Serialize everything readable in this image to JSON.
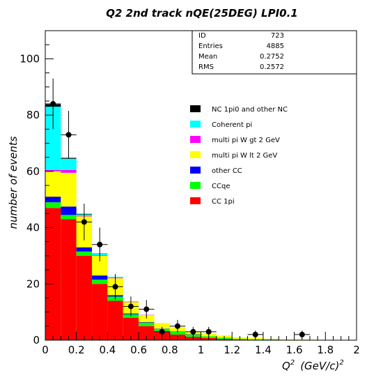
{
  "title": "Q2 2nd track nQE(25DEG) LPI0.1",
  "stats": [
    {
      "label": "ID",
      "value": "723"
    },
    {
      "label": "Entries",
      "value": "4885"
    },
    {
      "label": "Mean",
      "value": "0.2752"
    },
    {
      "label": "RMS",
      "value": "0.2572"
    }
  ],
  "chart_data": {
    "type": "bar",
    "stacked": true,
    "title": "Q2 2nd track nQE(25DEG) LPI0.1",
    "xlabel": "Q",
    "xlabel_sup": "2",
    "xlabel_unit": "(GeV/c)",
    "xlabel_unit_sup": "2",
    "ylabel": "number of events",
    "xlim": [
      0,
      2
    ],
    "ylim": [
      0,
      110
    ],
    "bin_width": 0.1,
    "bins": [
      0.0,
      0.1,
      0.2,
      0.3,
      0.4,
      0.5,
      0.6,
      0.7,
      0.8,
      0.9,
      1.0,
      1.1,
      1.2,
      1.3,
      1.4,
      1.5,
      1.6,
      1.7,
      1.8,
      1.9
    ],
    "x_ticks": [
      {
        "value": 0,
        "label": "0"
      },
      {
        "value": 0.2,
        "label": "0.2"
      },
      {
        "value": 0.4,
        "label": "0.4"
      },
      {
        "value": 0.6,
        "label": "0.6"
      },
      {
        "value": 0.8,
        "label": "0.8"
      },
      {
        "value": 1.0,
        "label": "1"
      },
      {
        "value": 1.2,
        "label": "1.2"
      },
      {
        "value": 1.4,
        "label": "1.4"
      },
      {
        "value": 1.6,
        "label": "1.6"
      },
      {
        "value": 1.8,
        "label": "1.8"
      },
      {
        "value": 2.0,
        "label": "2"
      }
    ],
    "y_ticks": [
      {
        "value": 0,
        "label": "0"
      },
      {
        "value": 20,
        "label": "20"
      },
      {
        "value": 40,
        "label": "40"
      },
      {
        "value": 60,
        "label": "60"
      },
      {
        "value": 80,
        "label": "80"
      },
      {
        "value": 100,
        "label": "100"
      }
    ],
    "series": [
      {
        "name": "CC 1pi",
        "color": "#ff0000",
        "values": [
          47,
          43,
          30,
          20,
          14,
          8,
          5,
          3,
          2,
          1.2,
          0.8,
          0.4,
          0.2,
          0.1,
          0.1,
          0,
          0,
          0,
          0,
          0
        ]
      },
      {
        "name": "CCqe",
        "color": "#00ff00",
        "values": [
          2,
          1.5,
          1.5,
          1.5,
          1.5,
          1.2,
          1.2,
          1,
          1,
          0.8,
          0.6,
          0.5,
          0.3,
          0.2,
          0.2,
          0.1,
          0.1,
          0.1,
          0.1,
          0.1
        ]
      },
      {
        "name": "other CC",
        "color": "#0000ff",
        "values": [
          2,
          3,
          1.5,
          1.5,
          0.5,
          0.3,
          0.2,
          0.1,
          0.1,
          0.1,
          0,
          0,
          0,
          0,
          0,
          0,
          0,
          0,
          0,
          0
        ]
      },
      {
        "name": "multi pi W lt 2 GeV",
        "color": "#ffff00",
        "values": [
          9,
          12,
          11,
          7,
          6,
          4,
          2.5,
          2,
          1.5,
          1,
          1,
          0.8,
          0.5,
          0.5,
          0.2,
          0.2,
          0.2,
          0.1,
          0,
          0
        ]
      },
      {
        "name": "multi pi W gt 2 GeV",
        "color": "#ff00ff",
        "values": [
          0.5,
          1,
          0.2,
          0.2,
          0.2,
          0.1,
          0.1,
          0,
          0,
          0,
          0,
          0,
          0,
          0,
          0,
          0,
          0,
          0,
          0,
          0
        ]
      },
      {
        "name": "Coherent pi",
        "color": "#00ffff",
        "values": [
          22.5,
          4,
          0.5,
          0.5,
          0.3,
          0.2,
          0,
          0,
          0,
          0,
          0,
          0,
          0,
          0,
          0,
          0,
          0,
          0,
          0,
          0
        ]
      },
      {
        "name": "NC 1pi0 and other NC",
        "color": "#000000",
        "values": [
          0.8,
          0.3,
          0.2,
          0.1,
          0,
          0,
          0,
          0,
          0,
          0,
          0,
          0,
          0,
          0,
          0,
          0,
          0,
          0,
          0,
          0
        ]
      }
    ],
    "data_points": [
      {
        "x": 0.05,
        "y": 84,
        "err": 9
      },
      {
        "x": 0.15,
        "y": 73,
        "err": 8.5
      },
      {
        "x": 0.25,
        "y": 42,
        "err": 6.5
      },
      {
        "x": 0.35,
        "y": 34,
        "err": 6
      },
      {
        "x": 0.45,
        "y": 19,
        "err": 4.5
      },
      {
        "x": 0.55,
        "y": 12,
        "err": 3.5
      },
      {
        "x": 0.65,
        "y": 11,
        "err": 3.3
      },
      {
        "x": 0.75,
        "y": 3,
        "err": 1.7
      },
      {
        "x": 0.85,
        "y": 5,
        "err": 2.2
      },
      {
        "x": 0.95,
        "y": 3,
        "err": 1.7
      },
      {
        "x": 1.05,
        "y": 3,
        "err": 1.7
      },
      {
        "x": 1.35,
        "y": 2,
        "err": 1.4
      },
      {
        "x": 1.65,
        "y": 2,
        "err": 1.4
      }
    ],
    "legend": [
      {
        "label": "NC 1pi0 and other NC",
        "color": "#000000"
      },
      {
        "label": "Coherent pi",
        "color": "#00ffff"
      },
      {
        "label": "multi pi W gt 2 GeV",
        "color": "#ff00ff"
      },
      {
        "label": "multi pi W lt 2 GeV",
        "color": "#ffff00"
      },
      {
        "label": "other CC",
        "color": "#0000ff"
      },
      {
        "label": "CCqe",
        "color": "#00ff00"
      },
      {
        "label": "CC 1pi",
        "color": "#ff0000"
      }
    ]
  }
}
